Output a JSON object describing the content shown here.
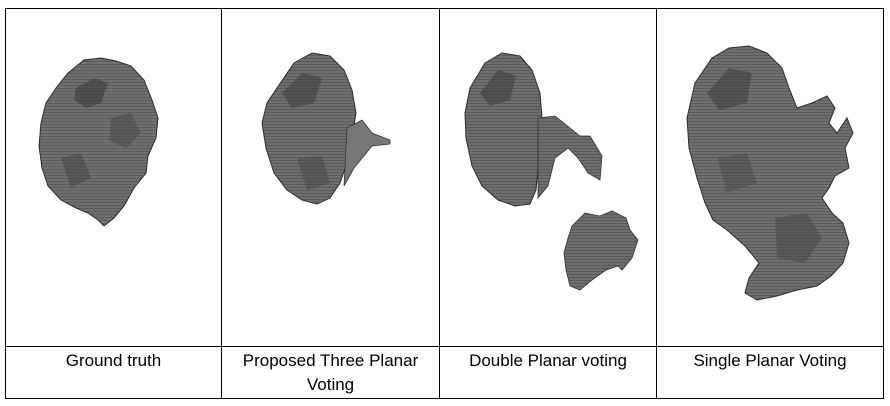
{
  "panels": [
    {
      "caption": "Ground truth",
      "shape": "brain-tumor-ground-truth"
    },
    {
      "caption": "Proposed Three Planar Voting",
      "shape": "brain-tumor-three-planar"
    },
    {
      "caption": "Double Planar voting",
      "shape": "brain-tumor-double-planar"
    },
    {
      "caption": "Single Planar Voting",
      "shape": "brain-tumor-single-planar"
    }
  ],
  "colors": {
    "border": "#000000",
    "mesh_dark": "#3a3a3a",
    "mesh_mid": "#6b6b6b",
    "mesh_light": "#9a9a9a"
  }
}
